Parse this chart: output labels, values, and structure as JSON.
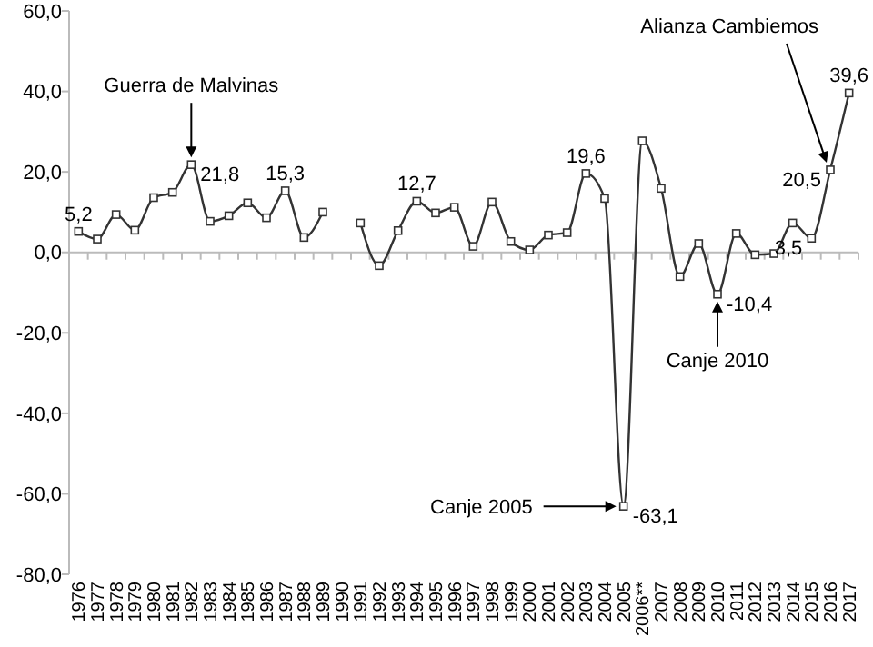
{
  "chart_data": {
    "type": "line",
    "categories": [
      "1976",
      "1977",
      "1978",
      "1979",
      "1980",
      "1981",
      "1982",
      "1983",
      "1984",
      "1985",
      "1986",
      "1987",
      "1988",
      "1989",
      "1990",
      "1991",
      "1992",
      "1993",
      "1994",
      "1995",
      "1996",
      "1997",
      "1998",
      "1999",
      "2000",
      "2001",
      "2002",
      "2003",
      "2004",
      "2005",
      "2006**",
      "2007",
      "2008",
      "2009",
      "2010",
      "2011",
      "2012",
      "2013",
      "2014",
      "2015",
      "2016",
      "2017"
    ],
    "series": [
      {
        "color": "#333333",
        "values": [
          5.2,
          3.3,
          9.4,
          5.5,
          13.6,
          14.9,
          21.8,
          7.7,
          9.1,
          12.3,
          8.6,
          15.3,
          3.7,
          10.0,
          null,
          7.3,
          -3.3,
          5.4,
          12.7,
          9.8,
          11.2,
          1.5,
          12.5,
          2.7,
          0.6,
          4.3,
          4.9,
          19.6,
          13.4,
          -63.1,
          27.7,
          15.9,
          -6.0,
          2.2,
          -10.4,
          4.7,
          -0.6,
          -0.3,
          7.3,
          3.5,
          20.5,
          39.6
        ],
        "value_labels": [
          "5,2",
          null,
          null,
          null,
          null,
          null,
          "21,8",
          null,
          null,
          null,
          null,
          "15,3",
          null,
          null,
          null,
          null,
          null,
          null,
          "12,7",
          null,
          null,
          null,
          null,
          null,
          null,
          null,
          null,
          "19,6",
          null,
          "-63,1",
          null,
          null,
          null,
          null,
          "-10,4",
          null,
          null,
          null,
          null,
          "3,5",
          "20,5",
          "39,6"
        ]
      }
    ],
    "ylim": [
      -80,
      60
    ],
    "yticks": [
      {
        "value": -80,
        "label": "-80,0"
      },
      {
        "value": -60,
        "label": "-60,0"
      },
      {
        "value": -40,
        "label": "-40,0"
      },
      {
        "value": -20,
        "label": "-20,0"
      },
      {
        "value": 0,
        "label": "0,0"
      },
      {
        "value": 20,
        "label": "20,0"
      },
      {
        "value": 40,
        "label": "40,0"
      },
      {
        "value": 60,
        "label": "60,0"
      }
    ],
    "marker": "square",
    "line_style": "solid",
    "annotations": [
      {
        "text": "Guerra de Malvinas",
        "x": "1982",
        "y": 21.8
      },
      {
        "text": "Alianza Cambiemos",
        "x": "2016",
        "y": 20.5
      },
      {
        "text": "Canje 2005",
        "x": "2005",
        "y": -63.1
      },
      {
        "text": "Canje 2010",
        "x": "2010",
        "y": -10.4
      }
    ]
  }
}
